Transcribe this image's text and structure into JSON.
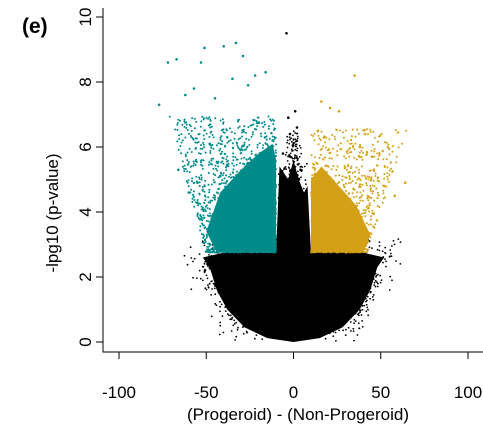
{
  "chart_data": {
    "type": "scatter",
    "panel_label": "(e)",
    "xlabel": "(Progeroid) - (Non-Progeroid)",
    "ylabel": "-lpg10 (p-value)",
    "xlim": [
      -100,
      100
    ],
    "ylim": [
      0,
      10
    ],
    "xticks": [
      -100,
      -50,
      0,
      50,
      100
    ],
    "yticks": [
      0,
      2,
      4,
      6,
      8,
      10
    ],
    "grid": false,
    "legend": "none",
    "colors": {
      "non_significant": "#000000",
      "down": "#008b8b",
      "up": "#d4a017"
    },
    "series": [
      {
        "group": "down",
        "color": "#008b8b",
        "region": {
          "x": [
            -77,
            -8
          ],
          "y": [
            2.7,
            9.1
          ]
        },
        "points": [
          [
            -77,
            7.3
          ],
          [
            -72,
            8.6
          ],
          [
            -67,
            8.7
          ],
          [
            -62,
            7.6
          ],
          [
            -57,
            7.8
          ],
          [
            -53,
            8.6
          ],
          [
            -51,
            9.05
          ],
          [
            -45,
            7.5
          ],
          [
            -40,
            9.1
          ],
          [
            -35,
            8.1
          ],
          [
            -33,
            9.2
          ],
          [
            -29,
            8.8
          ],
          [
            -26,
            7.9
          ],
          [
            -22,
            8.2
          ],
          [
            -16,
            8.3
          ],
          [
            -12,
            6.2
          ],
          [
            -42,
            5.1
          ],
          [
            -55,
            4.9
          ],
          [
            -38,
            6.3
          ],
          [
            -60,
            4.6
          ],
          [
            -66,
            5.3
          ],
          [
            -48,
            6.1
          ]
        ]
      },
      {
        "group": "non_significant",
        "color": "#000000",
        "region": {
          "x": [
            -65,
            65
          ],
          "y": [
            0,
            9.5
          ]
        },
        "points": [
          [
            -4,
            9.5
          ],
          [
            2,
            6.6
          ],
          [
            -2,
            6.4
          ],
          [
            4,
            5.3
          ],
          [
            -6,
            5.8
          ],
          [
            1,
            7.1
          ],
          [
            -3,
            6.9
          ]
        ]
      },
      {
        "group": "up",
        "color": "#d4a017",
        "region": {
          "x": [
            10,
            65
          ],
          "y": [
            2.7,
            8.2
          ]
        },
        "points": [
          [
            35,
            8.2
          ],
          [
            16,
            7.4
          ],
          [
            21,
            7.2
          ],
          [
            26,
            7.1
          ],
          [
            14,
            6.5
          ],
          [
            41,
            6.4
          ],
          [
            46,
            5.3
          ],
          [
            52,
            4.8
          ],
          [
            58,
            4.5
          ],
          [
            64,
            4.9
          ],
          [
            45,
            5.7
          ],
          [
            38,
            6.0
          ]
        ]
      }
    ]
  }
}
